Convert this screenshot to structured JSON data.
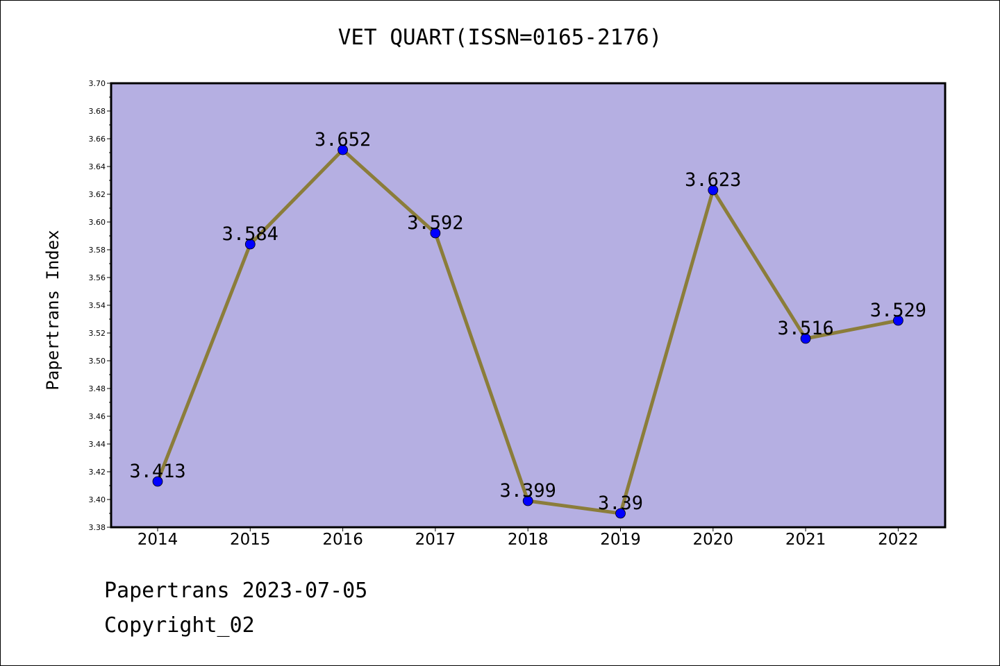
{
  "chart_data": {
    "type": "line",
    "title": "VET QUART(ISSN=0165-2176)",
    "xlabel": "",
    "ylabel": "Papertrans Index",
    "x": [
      "2014",
      "2015",
      "2016",
      "2017",
      "2018",
      "2019",
      "2020",
      "2021",
      "2022"
    ],
    "series": [
      {
        "values": [
          3.413,
          3.584,
          3.652,
          3.592,
          3.399,
          3.39,
          3.623,
          3.516,
          3.529
        ],
        "labels": [
          "3.413",
          "3.584",
          "3.652",
          "3.592",
          "3.399",
          "3.39",
          "3.623",
          "3.516",
          "3.529"
        ],
        "line_color": "#8b7d3a",
        "marker_color": "#0000ff"
      }
    ],
    "ylim": [
      3.38,
      3.7
    ],
    "yticks": [
      "3.38",
      "3.40",
      "3.42",
      "3.44",
      "3.46",
      "3.48",
      "3.50",
      "3.52",
      "3.54",
      "3.56",
      "3.58",
      "3.60",
      "3.62",
      "3.64",
      "3.66",
      "3.68",
      "3.70"
    ],
    "grid": false,
    "legend": "none",
    "plot_background": "#b5afe2"
  },
  "footer": {
    "line1": "Papertrans 2023-07-05",
    "line2": "Copyright_02"
  }
}
